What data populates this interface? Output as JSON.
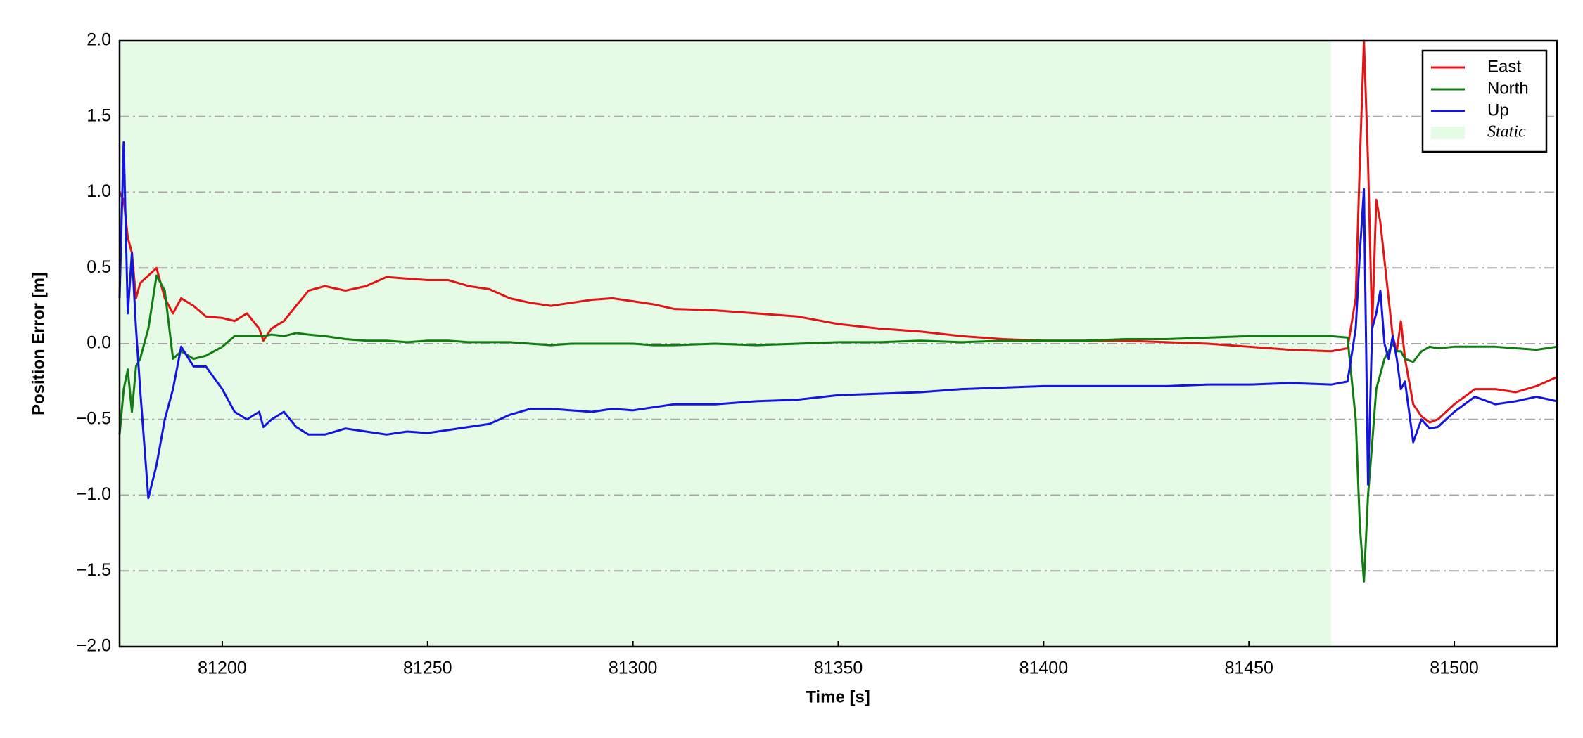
{
  "chart_data": {
    "type": "line",
    "xlabel": "Time [s]",
    "ylabel": "Position Error [m]",
    "x": [
      81175,
      81176,
      81177,
      81178,
      81179,
      81180,
      81182,
      81184,
      81186,
      81188,
      81190,
      81193,
      81196,
      81200,
      81203,
      81206,
      81209,
      81210,
      81212,
      81215,
      81218,
      81221,
      81225,
      81230,
      81235,
      81240,
      81245,
      81250,
      81255,
      81260,
      81265,
      81270,
      81275,
      81280,
      81285,
      81290,
      81295,
      81300,
      81305,
      81310,
      81320,
      81330,
      81340,
      81350,
      81360,
      81370,
      81380,
      81390,
      81400,
      81410,
      81420,
      81430,
      81440,
      81450,
      81460,
      81470,
      81474,
      81476,
      81477,
      81478,
      81479,
      81480,
      81481,
      81482,
      81483,
      81484,
      81485,
      81486,
      81487,
      81488,
      81490,
      81492,
      81494,
      81496,
      81500,
      81505,
      81510,
      81515,
      81520,
      81525
    ],
    "series": [
      {
        "name": "East",
        "color": "#e41414",
        "values": [
          1.0,
          0.95,
          0.7,
          0.6,
          0.3,
          0.4,
          0.45,
          0.5,
          0.3,
          0.2,
          0.3,
          0.25,
          0.18,
          0.17,
          0.15,
          0.2,
          0.1,
          0.02,
          0.1,
          0.15,
          0.25,
          0.35,
          0.38,
          0.35,
          0.38,
          0.44,
          0.43,
          0.42,
          0.42,
          0.38,
          0.36,
          0.3,
          0.27,
          0.25,
          0.27,
          0.29,
          0.3,
          0.28,
          0.26,
          0.23,
          0.22,
          0.2,
          0.18,
          0.13,
          0.1,
          0.08,
          0.05,
          0.03,
          0.02,
          0.02,
          0.02,
          0.01,
          0.0,
          -0.02,
          -0.04,
          -0.05,
          -0.03,
          0.3,
          1.2,
          2.0,
          1.2,
          0.1,
          0.95,
          0.8,
          0.55,
          0.3,
          0.05,
          -0.05,
          0.15,
          -0.1,
          -0.4,
          -0.48,
          -0.52,
          -0.5,
          -0.4,
          -0.3,
          -0.3,
          -0.32,
          -0.28,
          -0.22
        ]
      },
      {
        "name": "North",
        "color": "#0f7d0f",
        "values": [
          -0.6,
          -0.3,
          -0.17,
          -0.45,
          -0.15,
          -0.1,
          0.1,
          0.45,
          0.35,
          -0.1,
          -0.05,
          -0.1,
          -0.08,
          -0.02,
          0.05,
          0.05,
          0.05,
          0.05,
          0.06,
          0.05,
          0.07,
          0.06,
          0.05,
          0.03,
          0.02,
          0.02,
          0.01,
          0.02,
          0.02,
          0.01,
          0.01,
          0.01,
          0.0,
          -0.01,
          0.0,
          0.0,
          0.0,
          0.0,
          -0.01,
          -0.01,
          0.0,
          -0.01,
          0.0,
          0.01,
          0.01,
          0.02,
          0.01,
          0.02,
          0.02,
          0.02,
          0.03,
          0.03,
          0.04,
          0.05,
          0.05,
          0.05,
          0.04,
          -0.5,
          -1.2,
          -1.57,
          -1.0,
          -0.66,
          -0.3,
          -0.2,
          -0.1,
          -0.05,
          0.0,
          -0.05,
          -0.05,
          -0.1,
          -0.12,
          -0.05,
          -0.02,
          -0.03,
          -0.02,
          -0.02,
          -0.02,
          -0.03,
          -0.04,
          -0.02
        ]
      },
      {
        "name": "Up",
        "color": "#1414e0",
        "values": [
          0.3,
          1.33,
          0.2,
          0.6,
          0.1,
          -0.3,
          -1.02,
          -0.8,
          -0.5,
          -0.3,
          -0.02,
          -0.15,
          -0.15,
          -0.3,
          -0.45,
          -0.5,
          -0.45,
          -0.55,
          -0.5,
          -0.45,
          -0.55,
          -0.6,
          -0.6,
          -0.56,
          -0.58,
          -0.6,
          -0.58,
          -0.59,
          -0.57,
          -0.55,
          -0.53,
          -0.47,
          -0.43,
          -0.43,
          -0.44,
          -0.45,
          -0.43,
          -0.44,
          -0.42,
          -0.4,
          -0.4,
          -0.38,
          -0.37,
          -0.34,
          -0.33,
          -0.32,
          -0.3,
          -0.29,
          -0.28,
          -0.28,
          -0.28,
          -0.28,
          -0.27,
          -0.27,
          -0.26,
          -0.27,
          -0.25,
          0.1,
          0.6,
          1.02,
          -0.93,
          0.1,
          0.2,
          0.35,
          0.0,
          -0.1,
          0.05,
          -0.1,
          -0.3,
          -0.25,
          -0.65,
          -0.5,
          -0.56,
          -0.55,
          -0.45,
          -0.35,
          -0.4,
          -0.38,
          -0.35,
          -0.38
        ]
      }
    ],
    "spans": [
      {
        "name": "Static",
        "color": "#e6fbe6",
        "x": [
          81175,
          81470
        ]
      }
    ],
    "xlim": [
      81175,
      81525
    ],
    "xticks": [
      81200,
      81250,
      81300,
      81350,
      81400,
      81450,
      81500
    ],
    "ylim": [
      -2,
      2
    ],
    "yticks": [
      {
        "value": -2,
        "label": "−2.0"
      },
      {
        "value": -1.5,
        "label": "−1.5"
      },
      {
        "value": -1,
        "label": "−1.0"
      },
      {
        "value": -0.5,
        "label": "−0.5"
      },
      {
        "value": 0,
        "label": "0.0"
      },
      0.5,
      {
        "value": 1,
        "label": "1.0"
      },
      1.5,
      {
        "value": 2,
        "label": "2.0"
      }
    ],
    "grid": true,
    "legend": "upper right"
  }
}
